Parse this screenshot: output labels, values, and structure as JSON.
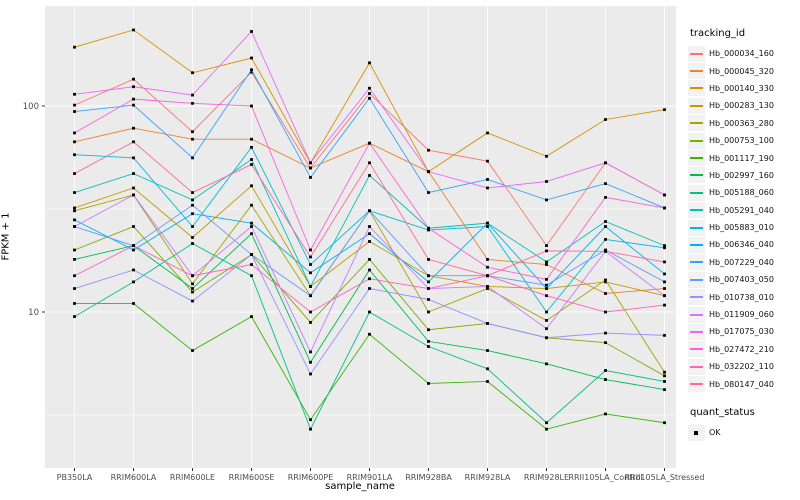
{
  "figure": {
    "xlabel": "sample_name",
    "ylabel": "FPKM + 1"
  },
  "legend": {
    "tracking_title": "tracking_id",
    "quant_title": "quant_status",
    "quant_items": [
      {
        "label": "OK",
        "marker": "black-square"
      }
    ]
  },
  "icons": {
    "legend_key_line": "colored-line-swatch",
    "legend_key_point": "black-square-point"
  },
  "chart_data": {
    "type": "line",
    "title": "",
    "xlabel": "sample_name",
    "ylabel": "FPKM + 1",
    "y_scale": "log10",
    "ylim": [
      2.5,
      310
    ],
    "y_major_ticks": [
      10,
      100
    ],
    "y_minor_ticks": [
      3.162,
      31.62,
      316.23
    ],
    "grid": true,
    "panel_background": "#EBEBEB",
    "grid_color": "#FFFFFF",
    "axis_text_color": "#4D4D4D",
    "point_marker": "black-square",
    "legend_position": "right",
    "categories": [
      "PB350LA",
      "RRIM600LA",
      "RRIM600LE",
      "RRIM600SE",
      "RRIM600PE",
      "RRIM901LA",
      "RRIM928BA",
      "RRIM928LA",
      "RRIM928LE",
      "RRII105LA_Control",
      "RRII105LA_Stressed"
    ],
    "series": [
      {
        "name": "Hb_000034_160",
        "color": "#F8766D",
        "values": [
          101,
          135,
          75,
          146,
          50,
          115,
          61,
          54,
          21,
          53,
          37
        ]
      },
      {
        "name": "Hb_000045_320",
        "color": "#EA8331",
        "values": [
          67,
          78,
          69,
          69,
          50,
          66,
          48,
          18,
          17,
          12.3,
          13
        ]
      },
      {
        "name": "Hb_000140_330",
        "color": "#D89000",
        "values": [
          193,
          234,
          145,
          171,
          53,
          162,
          48,
          74,
          57,
          86,
          96
        ]
      },
      {
        "name": "Hb_000283_130",
        "color": "#C09B00",
        "values": [
          32,
          40,
          23,
          41,
          13.3,
          22,
          15,
          13.3,
          13,
          14,
          12
        ]
      },
      {
        "name": "Hb_000363_280",
        "color": "#A3A500",
        "values": [
          31,
          37,
          13.7,
          33,
          12,
          31,
          10,
          13,
          9.1,
          14.3,
          5.1
        ]
      },
      {
        "name": "Hb_000753_100",
        "color": "#7CAE00",
        "values": [
          20,
          26,
          12.5,
          19,
          8.9,
          18,
          8.2,
          8.8,
          7.5,
          7.1,
          4.9
        ]
      },
      {
        "name": "Hb_001117_190",
        "color": "#39B600",
        "values": [
          11,
          11,
          6.5,
          9.5,
          3.0,
          7.8,
          4.5,
          4.6,
          2.7,
          3.2,
          2.9
        ]
      },
      {
        "name": "Hb_002997_160",
        "color": "#00BB4E",
        "values": [
          18,
          21,
          13,
          24,
          5.7,
          16,
          7.2,
          6.5,
          5.6,
          4.7,
          4.2
        ]
      },
      {
        "name": "Hb_005188_060",
        "color": "#00C087",
        "values": [
          9.5,
          14,
          21.5,
          15,
          2.7,
          10,
          6.8,
          5.3,
          2.9,
          5.2,
          4.6
        ]
      },
      {
        "name": "Hb_005291_040",
        "color": "#00C0B8",
        "values": [
          38,
          47,
          35,
          55,
          13.3,
          46,
          25.5,
          27,
          17.5,
          27.5,
          21
        ]
      },
      {
        "name": "Hb_005883_010",
        "color": "#00BCD8",
        "values": [
          58,
          56,
          26,
          63,
          17,
          31,
          25,
          26,
          10,
          22.5,
          20.5
        ]
      },
      {
        "name": "Hb_006346_040",
        "color": "#00B0F6",
        "values": [
          28,
          20,
          30,
          27,
          15.5,
          24,
          14,
          27,
          13,
          26,
          15.3
        ]
      },
      {
        "name": "Hb_007229_040",
        "color": "#35A2FF",
        "values": [
          94,
          101,
          56,
          150,
          45,
          109,
          38,
          44,
          35,
          42,
          32
        ]
      },
      {
        "name": "Hb_007403_050",
        "color": "#619CFF",
        "values": [
          26,
          21,
          33,
          19,
          12,
          31,
          15,
          15,
          13.5,
          20,
          14
        ]
      },
      {
        "name": "Hb_010738_010",
        "color": "#9590FF",
        "values": [
          13,
          16,
          11.3,
          19,
          5.0,
          13,
          11.5,
          8.8,
          7.5,
          7.9,
          7.7
        ]
      },
      {
        "name": "Hb_011909_060",
        "color": "#C77CFF",
        "values": [
          26,
          37,
          15,
          26,
          6.4,
          26,
          13,
          13.3,
          8.3,
          19.7,
          12
        ]
      },
      {
        "name": "Hb_017075_030",
        "color": "#E76BF3",
        "values": [
          114,
          124,
          113,
          230,
          53,
          122,
          48,
          40,
          43,
          53,
          37
        ]
      },
      {
        "name": "Hb_027472_210",
        "color": "#FA62DB",
        "values": [
          74,
          108,
          103,
          100,
          20,
          66,
          25.5,
          16.5,
          14.4,
          36,
          32
        ]
      },
      {
        "name": "Hb_032202_110",
        "color": "#FF62BC",
        "values": [
          15,
          21,
          15,
          17,
          10,
          14.5,
          13,
          15,
          12,
          10,
          10.8
        ]
      },
      {
        "name": "Hb_080147_040",
        "color": "#FF6A98",
        "values": [
          47,
          67,
          38,
          52,
          18.5,
          53,
          18,
          15,
          19.8,
          19.7,
          17.5
        ]
      }
    ],
    "quant_status": {
      "title": "quant_status",
      "items": [
        "OK"
      ]
    }
  }
}
